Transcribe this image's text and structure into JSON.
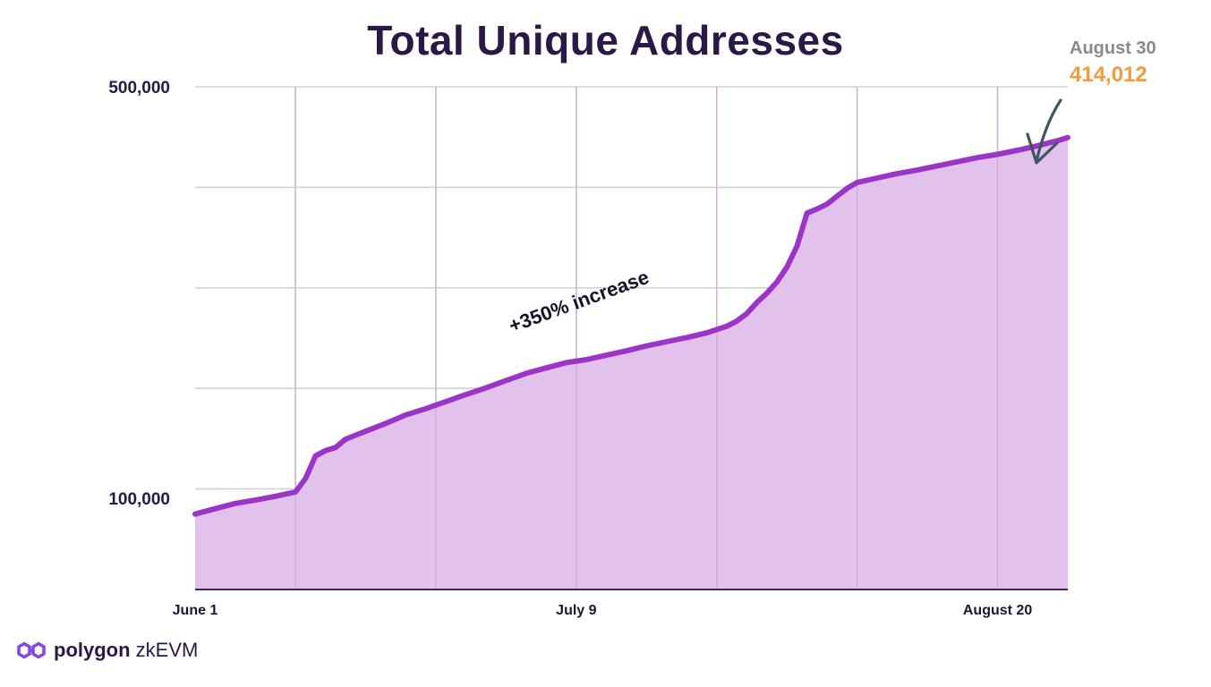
{
  "chart_data": {
    "type": "area",
    "title": "Total Unique Addresses",
    "xlabel": "",
    "ylabel": "",
    "y_scale": "log",
    "ylim": [
      70000,
      500000
    ],
    "y_ticks": [
      {
        "value": 500000,
        "label": "500,000"
      },
      {
        "value": 100000,
        "label": "100,000"
      }
    ],
    "x_start": "2023-06-01",
    "x_end": "2023-08-27",
    "x_ticks": [
      {
        "date": "2023-06-01",
        "label": "June 1"
      },
      {
        "date": "2023-07-09",
        "label": "July 9"
      },
      {
        "date": "2023-08-20",
        "label": "August 20"
      }
    ],
    "x_grid_dates": [
      "2023-06-11",
      "2023-06-25",
      "2023-07-09",
      "2023-07-23",
      "2023-08-06",
      "2023-08-20"
    ],
    "grid": true,
    "series": [
      {
        "name": "",
        "color": "#9b35c8",
        "fill": "#e2c1ec",
        "points": [
          [
            "2023-06-01",
            94000
          ],
          [
            "2023-06-03",
            96000
          ],
          [
            "2023-06-05",
            98000
          ],
          [
            "2023-06-07",
            99300
          ],
          [
            "2023-06-09",
            100800
          ],
          [
            "2023-06-11",
            102500
          ],
          [
            "2023-06-12",
            108000
          ],
          [
            "2023-06-13",
            118000
          ],
          [
            "2023-06-14",
            120500
          ],
          [
            "2023-06-15",
            122000
          ],
          [
            "2023-06-16",
            126000
          ],
          [
            "2023-06-18",
            130000
          ],
          [
            "2023-06-20",
            134000
          ],
          [
            "2023-06-22",
            138500
          ],
          [
            "2023-06-24",
            142000
          ],
          [
            "2023-06-26",
            146000
          ],
          [
            "2023-06-28",
            150000
          ],
          [
            "2023-06-30",
            154000
          ],
          [
            "2023-07-02",
            158500
          ],
          [
            "2023-07-04",
            163000
          ],
          [
            "2023-07-06",
            166500
          ],
          [
            "2023-07-08",
            170000
          ],
          [
            "2023-07-10",
            172000
          ],
          [
            "2023-07-12",
            175000
          ],
          [
            "2023-07-14",
            178000
          ],
          [
            "2023-07-16",
            181500
          ],
          [
            "2023-07-18",
            184500
          ],
          [
            "2023-07-20",
            187500
          ],
          [
            "2023-07-22",
            191000
          ],
          [
            "2023-07-24",
            196000
          ],
          [
            "2023-07-25",
            200000
          ],
          [
            "2023-07-26",
            206000
          ],
          [
            "2023-07-27",
            215000
          ],
          [
            "2023-07-28",
            223000
          ],
          [
            "2023-07-29",
            233000
          ],
          [
            "2023-07-30",
            247000
          ],
          [
            "2023-07-31",
            268000
          ],
          [
            "2023-08-01",
            305000
          ],
          [
            "2023-08-02",
            310000
          ],
          [
            "2023-08-03",
            316000
          ],
          [
            "2023-08-04",
            326000
          ],
          [
            "2023-08-05",
            336000
          ],
          [
            "2023-08-06",
            344000
          ],
          [
            "2023-08-08",
            350000
          ],
          [
            "2023-08-10",
            356000
          ],
          [
            "2023-08-12",
            361000
          ],
          [
            "2023-08-14",
            367000
          ],
          [
            "2023-08-16",
            373000
          ],
          [
            "2023-08-18",
            379000
          ],
          [
            "2023-08-20",
            384000
          ],
          [
            "2023-08-22",
            390000
          ],
          [
            "2023-08-24",
            397000
          ],
          [
            "2023-08-26",
            405000
          ],
          [
            "2023-08-27",
            410000
          ]
        ]
      }
    ],
    "annotations": [
      {
        "text": "August 30",
        "kind": "date"
      },
      {
        "text": "414,012",
        "kind": "value"
      },
      {
        "text": "+350% increase",
        "kind": "note"
      }
    ]
  },
  "brand": {
    "name_bold": "polygon",
    "name_light": " zkEVM",
    "logo_icon": "polygon-logo-icon",
    "logo_color": "#8247e5"
  }
}
